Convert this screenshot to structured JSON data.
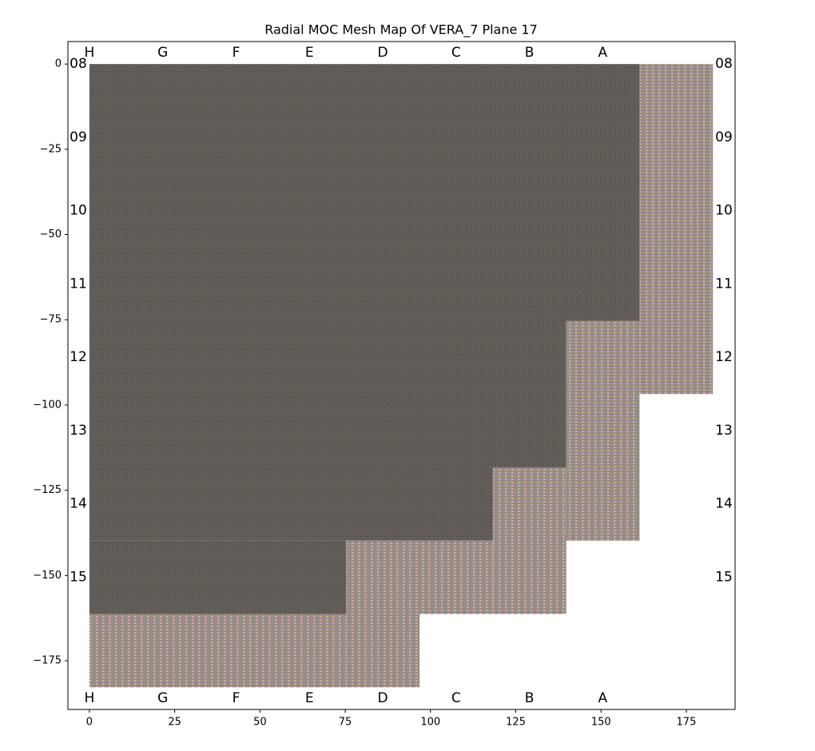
{
  "chart_data": {
    "type": "mesh",
    "title": "Radial MOC Mesh Map Of VERA_7 Plane 17",
    "xlim": [
      -6.3,
      189.3
    ],
    "ylim": [
      -189.3,
      6.6
    ],
    "xticks": [
      0,
      25,
      50,
      75,
      100,
      125,
      150,
      175
    ],
    "yticks": [
      0,
      {
        "value": -25,
        "label": "−25"
      },
      {
        "value": -50,
        "label": "−50"
      },
      {
        "value": -75,
        "label": "−75"
      },
      {
        "value": -100,
        "label": "−100"
      },
      {
        "value": -125,
        "label": "−125"
      },
      {
        "value": -150,
        "label": "−150"
      },
      {
        "value": -175,
        "label": "−175"
      }
    ],
    "column_labels": {
      "labels": [
        "H",
        "G",
        "F",
        "E",
        "D",
        "C",
        "B",
        "A"
      ],
      "x": [
        0,
        21.5,
        43,
        64.5,
        86,
        107.5,
        129,
        150.5
      ]
    },
    "row_labels": {
      "labels": [
        "08",
        "09",
        "10",
        "11",
        "12",
        "13",
        "14",
        "15"
      ],
      "y": [
        0,
        -21.5,
        -43,
        -64.5,
        -86,
        -107.5,
        -129,
        -150.5
      ]
    },
    "fuel_regions": [
      [
        0,
        161.3,
        0,
        -75.3
      ],
      [
        0,
        139.8,
        -75.3,
        -118.3
      ],
      [
        0,
        118.3,
        -118.3,
        -139.8
      ],
      [
        0,
        75.3,
        -139.8,
        -161.3
      ]
    ],
    "reflector_regions": [
      [
        161.3,
        182.8,
        0,
        -96.8
      ],
      [
        139.8,
        161.3,
        -75.3,
        -139.8
      ],
      [
        118.3,
        139.8,
        -118.3,
        -161.3
      ],
      [
        75.3,
        118.3,
        -139.8,
        -161.3
      ],
      [
        0,
        96.8,
        -161.3,
        -182.8
      ]
    ]
  }
}
